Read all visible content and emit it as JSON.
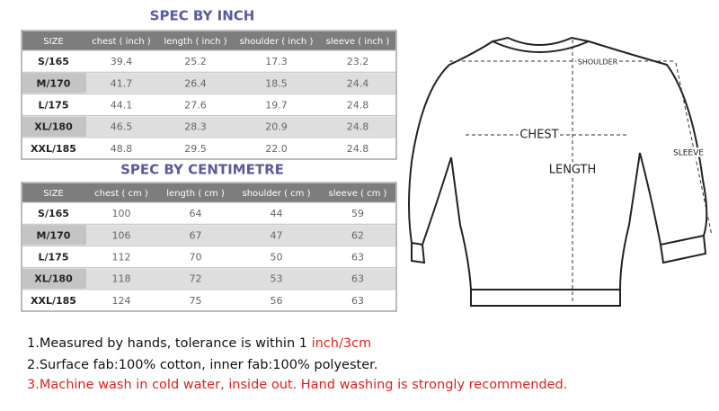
{
  "tables": [
    {
      "title": "SPEC BY INCH",
      "header": [
        "SIZE",
        "chest ( inch )",
        "length ( inch )",
        "shoulder ( inch )",
        "sleeve ( inch )"
      ],
      "rows": [
        [
          "S/165",
          "39.4",
          "25.2",
          "17.3",
          "23.2"
        ],
        [
          "M/170",
          "41.7",
          "26.4",
          "18.5",
          "24.4"
        ],
        [
          "L/175",
          "44.1",
          "27.6",
          "19.7",
          "24.8"
        ],
        [
          "XL/180",
          "46.5",
          "28.3",
          "20.9",
          "24.8"
        ],
        [
          "XXL/185",
          "48.8",
          "29.5",
          "22.0",
          "24.8"
        ]
      ]
    },
    {
      "title": "SPEC BY CENTIMETRE",
      "header": [
        "SIZE",
        "chest ( cm )",
        "length ( cm )",
        "shoulder ( cm )",
        "sleeve ( cm )"
      ],
      "rows": [
        [
          "S/165",
          "100",
          "64",
          "44",
          "59"
        ],
        [
          "M/170",
          "106",
          "67",
          "47",
          "62"
        ],
        [
          "L/175",
          "112",
          "70",
          "50",
          "63"
        ],
        [
          "XL/180",
          "118",
          "72",
          "53",
          "63"
        ],
        [
          "XXL/185",
          "124",
          "75",
          "56",
          "63"
        ]
      ]
    }
  ],
  "diagram": {
    "shoulder": "SHOULDER",
    "chest": "CHEST",
    "length": "LENGTH",
    "sleeve": "SLEEVE"
  },
  "notes": [
    [
      {
        "text": "1.Measured by hands, tolerance is within 1 ",
        "color": "#111111"
      },
      {
        "text": "inch/3cm",
        "color": "#e02020"
      }
    ],
    [
      {
        "text": "2.Surface fab:100% cotton, inner fab:100% polyester.",
        "color": "#111111"
      }
    ],
    [
      {
        "text": "3.Machine wash in cold water, inside out. Hand washing is strongly recommended.",
        "color": "#e02020"
      }
    ]
  ]
}
